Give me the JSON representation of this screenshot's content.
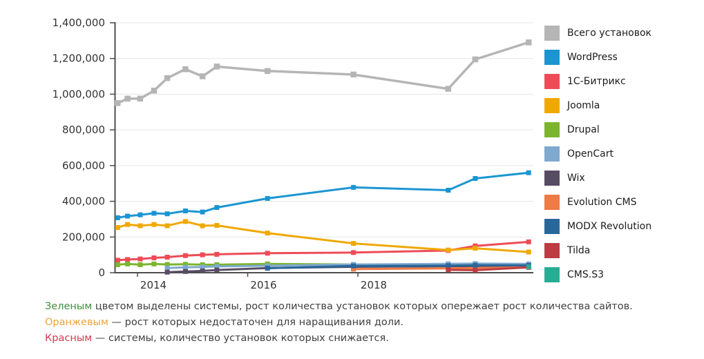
{
  "chart_data": {
    "type": "line",
    "title": "",
    "xlabel": "",
    "ylabel": "",
    "grid": true,
    "legend_position": "right",
    "ylim": [
      0,
      1400000
    ],
    "xlim": [
      2013.5,
      2021.2
    ],
    "x_years": [
      2013.64,
      2013.82,
      2014.05,
      2014.3,
      2014.54,
      2014.87,
      2015.18,
      2015.44,
      2016.36,
      2017.92,
      2019.64,
      2020.13,
      2021.1
    ],
    "x_ticks": [
      {
        "year": 2014,
        "label": "2014"
      },
      {
        "year": 2016,
        "label": "2016"
      },
      {
        "year": 2018,
        "label": "2018"
      }
    ],
    "y_ticks": [
      0,
      200000,
      400000,
      600000,
      800000,
      1000000,
      1200000,
      1400000
    ],
    "y_tick_labels": [
      "0",
      "200,000",
      "400,000",
      "600,000",
      "800,000",
      "1,000,000",
      "1,200,000",
      "1,400,000"
    ],
    "series": [
      {
        "key": "total",
        "name": "Всего установок",
        "color": "#b5b5b5",
        "values": [
          950000,
          975000,
          975000,
          1020000,
          1090000,
          1140000,
          1100000,
          1155000,
          1130000,
          1110000,
          1030000,
          1195000,
          1290000
        ]
      },
      {
        "key": "wordpress",
        "name": "WordPress",
        "color": "#1b95d2",
        "values": [
          308000,
          317000,
          324000,
          333000,
          330000,
          346000,
          340000,
          365000,
          416000,
          478000,
          462000,
          528000,
          560000
        ]
      },
      {
        "key": "bitrix",
        "name": "1С-Битрикс",
        "color": "#ee4b57",
        "values": [
          70000,
          74000,
          77000,
          83000,
          87000,
          96000,
          100000,
          103000,
          109000,
          113000,
          124000,
          150000,
          173000
        ]
      },
      {
        "key": "joomla",
        "name": "Joomla",
        "color": "#f0a802",
        "values": [
          253000,
          270000,
          263000,
          270000,
          263000,
          287000,
          263000,
          265000,
          222000,
          164000,
          127000,
          137000,
          116000
        ]
      },
      {
        "key": "drupal",
        "name": "Drupal",
        "color": "#7cb42e",
        "values": [
          45000,
          49000,
          45000,
          49000,
          46000,
          47000,
          45000,
          45000,
          49000,
          46000,
          44000,
          45000,
          46000
        ]
      },
      {
        "key": "opencart",
        "name": "OpenCart",
        "color": "#7fa9cf",
        "values": [
          null,
          null,
          null,
          null,
          26000,
          30000,
          32000,
          35000,
          39000,
          46000,
          50000,
          51000,
          49000
        ]
      },
      {
        "key": "wix",
        "name": "Wix",
        "color": "#574d63",
        "values": [
          null,
          null,
          null,
          null,
          3000,
          7000,
          10000,
          15000,
          26000,
          33000,
          36000,
          37000,
          38000
        ]
      },
      {
        "key": "evolution",
        "name": "Evolution CMS",
        "color": "#ee7a45",
        "values": [
          null,
          null,
          null,
          null,
          null,
          null,
          null,
          null,
          null,
          20000,
          24000,
          26000,
          30000
        ]
      },
      {
        "key": "modx",
        "name": "MODX Revolution",
        "color": "#29679b",
        "values": [
          null,
          null,
          null,
          null,
          null,
          null,
          null,
          null,
          25000,
          38000,
          40000,
          42000,
          41000
        ]
      },
      {
        "key": "tilda",
        "name": "Tilda",
        "color": "#bc3c41",
        "values": [
          null,
          null,
          null,
          null,
          null,
          null,
          null,
          null,
          null,
          null,
          16000,
          14000,
          30000
        ]
      },
      {
        "key": "cmss3",
        "name": "CMS.S3",
        "color": "#27ad93",
        "values": [
          null,
          null,
          null,
          null,
          null,
          null,
          null,
          null,
          null,
          null,
          null,
          null,
          33000
        ]
      }
    ]
  },
  "footnotes": [
    {
      "lead": "Зеленым",
      "color": "#3e8f3e",
      "rest": " цветом выделены системы, рост количества установок которых опережает рост количества сайтов."
    },
    {
      "lead": "Оранжевым",
      "color": "#eca33f",
      "rest": " — рост которых недостаточен для наращивания доли."
    },
    {
      "lead": "Красным",
      "color": "#d23b50",
      "rest": " — системы, количество установок которых снижается."
    }
  ],
  "colors": {
    "background": "#ffffff",
    "axis": "#4d4d4d",
    "grid": "#e5e5e5",
    "tick_label": "#333333",
    "legend_text": "#1a1a1a",
    "footnote_text": "#404040"
  }
}
